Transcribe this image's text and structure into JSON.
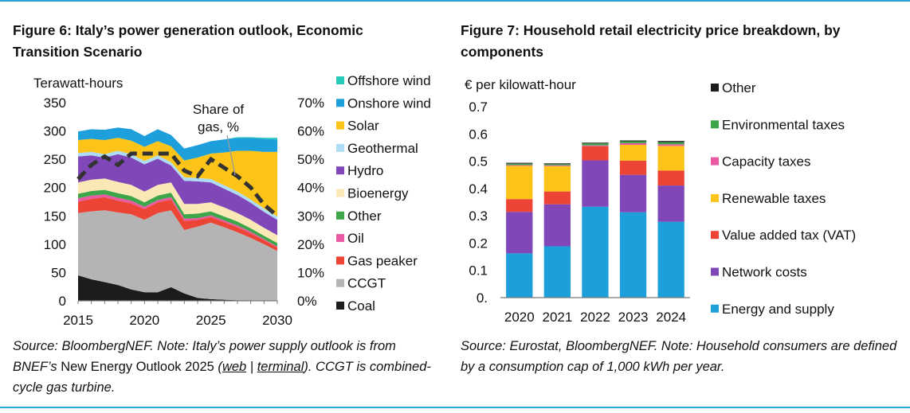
{
  "figures": {
    "fig6": {
      "title": "Figure 6:  Italy’s power generation outlook, Economic Transition Scenario",
      "source_pre": "Source: BloombergNEF. Note: Italy’s power supply outlook is from BNEF’s ",
      "source_upright": "New Energy Outlook 2025",
      "source_open": " (",
      "source_link1": "web",
      "source_sep": " | ",
      "source_link2": "terminal",
      "source_post": "). CCGT is combined-cycle gas turbine."
    },
    "fig7": {
      "title": "Figure 7:  Household retail electricity price breakdown, by components",
      "source": "Source: Eurostat, BloombergNEF. Note: Household consumers are defined by a consumption cap of 1,000 kWh per year."
    }
  },
  "chart_data": [
    {
      "type": "area",
      "id": "fig6",
      "title": "Figure 6:  Italy’s power generation outlook, Economic Transition Scenario",
      "ylabel": "Terawatt-hours",
      "ylim": [
        0,
        350
      ],
      "yticks": [
        "0",
        "50",
        "100",
        "150",
        "200",
        "250",
        "300",
        "350"
      ],
      "y2ticks": [
        "0%",
        "10%",
        "20%",
        "30%",
        "40%",
        "50%",
        "60%",
        "70%"
      ],
      "y2lim": [
        0,
        70
      ],
      "xticks": [
        "2015",
        "2020",
        "2025",
        "2030"
      ],
      "x": [
        2015,
        2016,
        2017,
        2018,
        2019,
        2020,
        2021,
        2022,
        2023,
        2024,
        2025,
        2026,
        2027,
        2028,
        2029,
        2030
      ],
      "series": [
        {
          "name": "Coal",
          "color": "#1c1c1c",
          "values": [
            45,
            38,
            33,
            28,
            20,
            15,
            15,
            24,
            13,
            5,
            3,
            2,
            1,
            1,
            0,
            0
          ]
        },
        {
          "name": "CCGT",
          "color": "#b4b4b4",
          "values": [
            110,
            120,
            127,
            128,
            133,
            128,
            140,
            136,
            112,
            126,
            135,
            128,
            120,
            110,
            100,
            88
          ]
        },
        {
          "name": "Gas peaker",
          "color": "#ec4536",
          "values": [
            20,
            22,
            23,
            21,
            19,
            19,
            19,
            19,
            16,
            12,
            10,
            9,
            9,
            8,
            7,
            6
          ]
        },
        {
          "name": "Oil",
          "color": "#e95aa2",
          "values": [
            6,
            6,
            5,
            5,
            5,
            4,
            4,
            4,
            4,
            3,
            3,
            3,
            3,
            3,
            2,
            2
          ]
        },
        {
          "name": "Other",
          "color": "#3da54a",
          "values": [
            8,
            8,
            8,
            8,
            8,
            8,
            8,
            8,
            8,
            8,
            7,
            7,
            7,
            6,
            6,
            6
          ]
        },
        {
          "name": "Bioenergy",
          "color": "#fbe8b7",
          "values": [
            20,
            20,
            20,
            20,
            20,
            19,
            19,
            18,
            18,
            17,
            16,
            16,
            15,
            15,
            14,
            14
          ]
        },
        {
          "name": "Hydro",
          "color": "#7f47b8",
          "values": [
            46,
            43,
            37,
            49,
            48,
            48,
            46,
            30,
            41,
            40,
            35,
            33,
            32,
            30,
            28,
            27
          ]
        },
        {
          "name": "Geothermal",
          "color": "#aedcf4",
          "values": [
            6,
            6,
            6,
            6,
            6,
            6,
            6,
            6,
            6,
            6,
            6,
            6,
            6,
            6,
            6,
            6
          ]
        },
        {
          "name": "Solar",
          "color": "#fcc419",
          "values": [
            23,
            23,
            25,
            23,
            24,
            25,
            25,
            28,
            30,
            36,
            45,
            58,
            72,
            86,
            100,
            114
          ]
        },
        {
          "name": "Onshore wind",
          "color": "#1d9fdc",
          "values": [
            15,
            17,
            18,
            18,
            20,
            19,
            21,
            20,
            21,
            22,
            22,
            23,
            23,
            23,
            23,
            22
          ]
        },
        {
          "name": "Offshore wind",
          "color": "#27c9b8",
          "values": [
            0,
            0,
            0,
            0,
            0,
            0,
            0,
            0,
            0,
            0,
            0,
            0,
            1,
            1,
            2,
            3
          ]
        }
      ],
      "line": {
        "name": "Share of gas, %",
        "label": "Share of gas, %",
        "axis": "secondary",
        "values": [
          43,
          48,
          51,
          48,
          52,
          52,
          52,
          52,
          46,
          44,
          50,
          47,
          44,
          40,
          34,
          30
        ]
      },
      "annotation_line1": "Share of",
      "annotation_line2": "gas, %",
      "legend_order": [
        "Offshore wind",
        "Onshore wind",
        "Solar",
        "Geothermal",
        "Hydro",
        "Bioenergy",
        "Other",
        "Oil",
        "Gas peaker",
        "CCGT",
        "Coal"
      ]
    },
    {
      "type": "bar",
      "id": "fig7",
      "stacked": true,
      "title": "Figure 7:  Household retail electricity price breakdown, by components",
      "ylabel": "€ per kilowatt-hour",
      "ylim": [
        0,
        0.7
      ],
      "yticks": [
        "0.",
        "0.1",
        "0.2",
        "0.3",
        "0.4",
        "0.5",
        "0.6",
        "0.7"
      ],
      "categories": [
        "2020",
        "2021",
        "2022",
        "2023",
        "2024"
      ],
      "series": [
        {
          "name": "Energy and supply",
          "color": "#1d9fdc",
          "values": [
            0.162,
            0.188,
            0.333,
            0.313,
            0.278
          ]
        },
        {
          "name": "Network costs",
          "color": "#7f47b8",
          "values": [
            0.152,
            0.154,
            0.17,
            0.137,
            0.133
          ]
        },
        {
          "name": "Value added tax (VAT)",
          "color": "#ec4536",
          "values": [
            0.047,
            0.047,
            0.052,
            0.052,
            0.055
          ]
        },
        {
          "name": "Renewable taxes",
          "color": "#fcc419",
          "values": [
            0.122,
            0.093,
            0.0,
            0.058,
            0.09
          ]
        },
        {
          "name": "Capacity taxes",
          "color": "#e95aa2",
          "values": [
            0.003,
            0.003,
            0.003,
            0.006,
            0.006
          ]
        },
        {
          "name": "Environmental taxes",
          "color": "#3da54a",
          "values": [
            0.005,
            0.004,
            0.007,
            0.007,
            0.008
          ]
        },
        {
          "name": "Other",
          "color": "#1c1c1c",
          "values": [
            0.003,
            0.003,
            0.003,
            0.003,
            0.004
          ]
        }
      ],
      "legend_order": [
        "Other",
        "Environmental taxes",
        "Capacity taxes",
        "Renewable taxes",
        "Value added tax (VAT)",
        "Network costs",
        "Energy and supply"
      ]
    }
  ]
}
